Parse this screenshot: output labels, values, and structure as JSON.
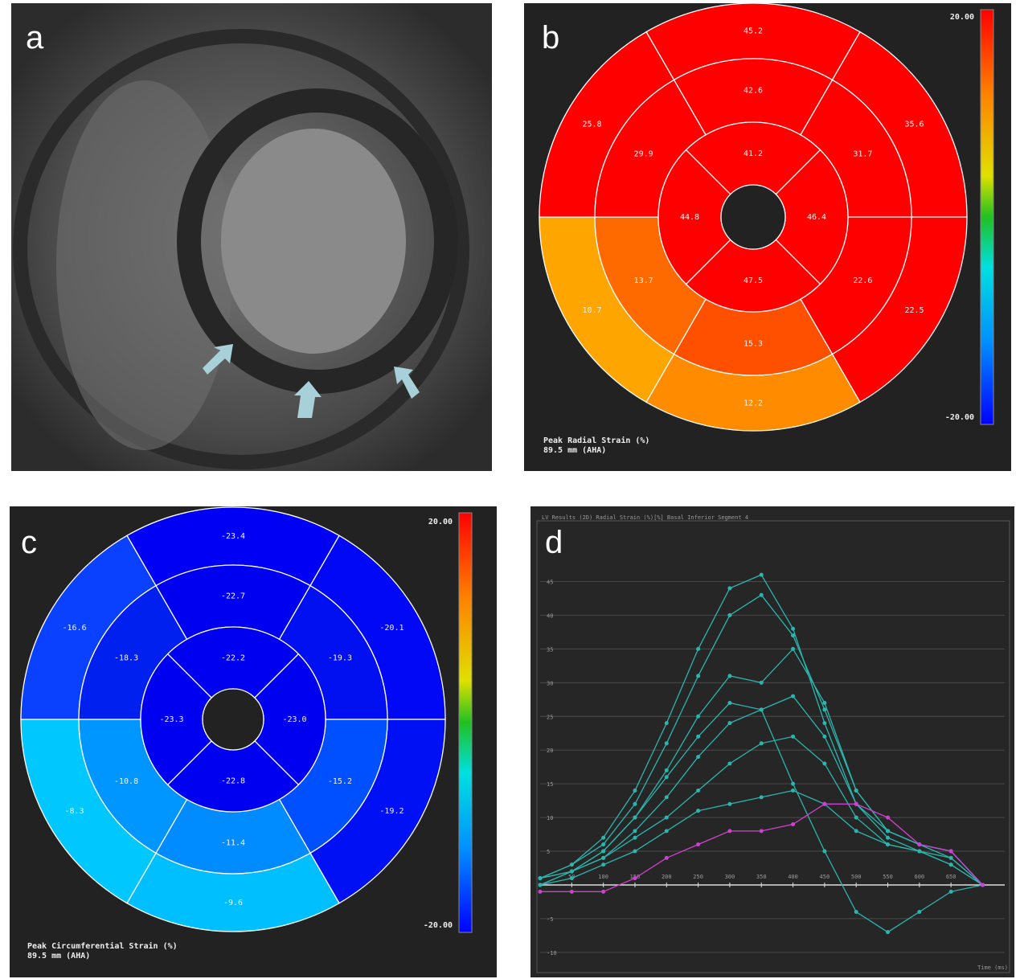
{
  "panels": {
    "a": {
      "label": "a"
    },
    "b": {
      "label": "b",
      "scale_max": "20.00",
      "scale_min": "-20.00",
      "caption": [
        "Peak Radial Strain (%)",
        "89.5 mm (AHA)"
      ],
      "basal": [
        {
          "value": "45.2",
          "color": "#ff0000"
        },
        {
          "value": "35.6",
          "color": "#ff0000"
        },
        {
          "value": "22.5",
          "color": "#ff0000"
        },
        {
          "value": "12.2",
          "color": "#ff8c00"
        },
        {
          "value": "10.7",
          "color": "#ffa500"
        },
        {
          "value": "25.8",
          "color": "#ff0000"
        }
      ],
      "mid": [
        {
          "value": "42.6",
          "color": "#ff0000"
        },
        {
          "value": "31.7",
          "color": "#ff0000"
        },
        {
          "value": "22.6",
          "color": "#ff0000"
        },
        {
          "value": "15.3",
          "color": "#ff5000"
        },
        {
          "value": "13.7",
          "color": "#ff6a00"
        },
        {
          "value": "29.9",
          "color": "#ff0000"
        }
      ],
      "apical": [
        {
          "value": "41.2",
          "color": "#ff0000"
        },
        {
          "value": "46.4",
          "color": "#ff0000"
        },
        {
          "value": "47.5",
          "color": "#ff0000"
        },
        {
          "value": "44.8",
          "color": "#ff0000"
        }
      ]
    },
    "c": {
      "label": "c",
      "scale_max": "20.00",
      "scale_min": "-20.00",
      "caption": [
        "Peak Circumferential Strain (%)",
        "89.5 mm (AHA)"
      ],
      "basal": [
        {
          "value": "-23.4",
          "color": "#0000f5"
        },
        {
          "value": "-20.1",
          "color": "#0008f5"
        },
        {
          "value": "-19.2",
          "color": "#0010f5"
        },
        {
          "value": "-9.6",
          "color": "#00bfff"
        },
        {
          "value": "-8.3",
          "color": "#00c8ff"
        },
        {
          "value": "-16.6",
          "color": "#0a40ff"
        }
      ],
      "mid": [
        {
          "value": "-22.7",
          "color": "#0000f0"
        },
        {
          "value": "-19.3",
          "color": "#0010f0"
        },
        {
          "value": "-15.2",
          "color": "#0050ff"
        },
        {
          "value": "-11.4",
          "color": "#008cff"
        },
        {
          "value": "-10.8",
          "color": "#0096ff"
        },
        {
          "value": "-18.3",
          "color": "#0020f0"
        }
      ],
      "apical": [
        {
          "value": "-22.2",
          "color": "#0000f0"
        },
        {
          "value": "-23.0",
          "color": "#0000f0"
        },
        {
          "value": "-22.8",
          "color": "#0000f0"
        },
        {
          "value": "-23.3",
          "color": "#0000f0"
        }
      ]
    }
  },
  "chart_data": {
    "type": "line",
    "panel_label": "d",
    "title": "LV Results (2D) Radial Strain (%)[%] Basal Inferior Segment 4",
    "x_label": "Time (ms)",
    "x": [
      0,
      50,
      100,
      150,
      200,
      250,
      300,
      350,
      400,
      450,
      500,
      550,
      600,
      650,
      700
    ],
    "xlim": [
      0,
      735
    ],
    "ylim": [
      -13,
      54
    ],
    "xticks": [
      50,
      100,
      150,
      200,
      250,
      300,
      350,
      400,
      450,
      500,
      550,
      600,
      650
    ],
    "yticks": [
      -10,
      -5,
      5,
      10,
      15,
      20,
      25,
      30,
      35,
      40,
      45
    ],
    "grid": true,
    "series": [
      {
        "color": "#2cb5ad",
        "values": [
          1,
          3,
          7,
          14,
          24,
          35,
          44,
          46,
          38,
          24,
          12,
          8,
          6,
          5,
          0
        ]
      },
      {
        "color": "#2cb5ad",
        "values": [
          1,
          3,
          6,
          12,
          21,
          31,
          40,
          43,
          37,
          26,
          14,
          8,
          6,
          5,
          0
        ]
      },
      {
        "color": "#2cb5ad",
        "values": [
          1,
          2,
          5,
          10,
          17,
          25,
          31,
          30,
          35,
          27,
          14,
          8,
          6,
          4,
          0
        ]
      },
      {
        "color": "#2cb5ad",
        "values": [
          0,
          2,
          4,
          8,
          13,
          19,
          24,
          26,
          28,
          22,
          12,
          7,
          5,
          4,
          0
        ]
      },
      {
        "color": "#2cb5ad",
        "values": [
          0,
          2,
          4,
          7,
          10,
          14,
          18,
          21,
          22,
          18,
          10,
          6,
          5,
          3,
          0
        ]
      },
      {
        "color": "#2cb5ad",
        "values": [
          0,
          1,
          3,
          5,
          8,
          11,
          12,
          13,
          14,
          12,
          8,
          6,
          5,
          3,
          0
        ]
      },
      {
        "color": "#2cb5ad",
        "values": [
          1,
          2,
          5,
          10,
          16,
          22,
          27,
          26,
          15,
          5,
          -4,
          -7,
          -4,
          -1,
          0
        ]
      },
      {
        "color": "#d040d0",
        "values": [
          -1,
          -1,
          -1,
          1,
          4,
          6,
          8,
          8,
          9,
          12,
          12,
          10,
          6,
          5,
          0
        ]
      }
    ]
  }
}
